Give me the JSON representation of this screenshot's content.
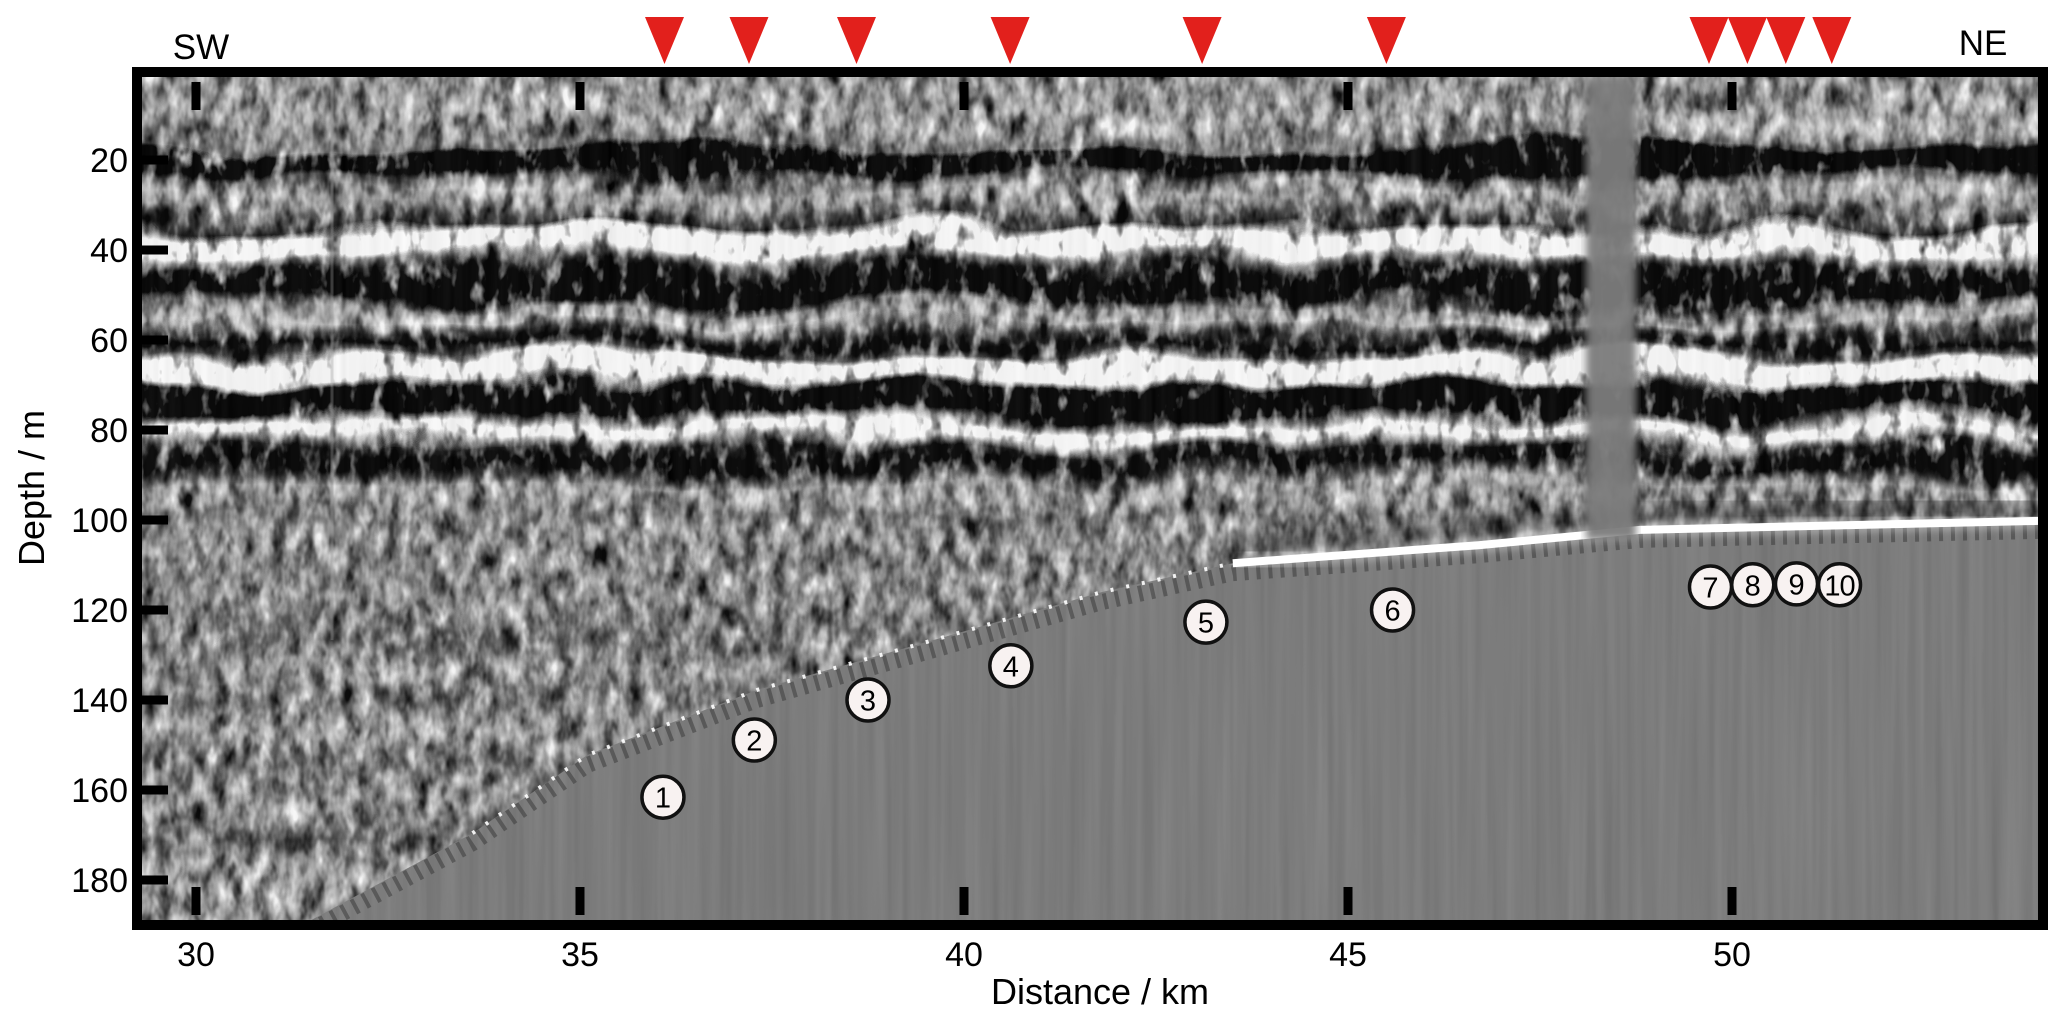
{
  "figure": {
    "left_label": "SW",
    "right_label": "NE",
    "xlabel": "Distance / km",
    "ylabel": "Depth / m"
  },
  "chart_data": {
    "type": "heatmap",
    "title": "",
    "subtitle": "grayscale reflection depth section (radargram/seismic profile)",
    "xlabel": "Distance / km",
    "ylabel": "Depth / m",
    "orientation": {
      "left": "SW",
      "right": "NE"
    },
    "x_ticks": [
      30,
      35,
      40,
      45,
      50
    ],
    "y_ticks": [
      20,
      40,
      60,
      80,
      100,
      120,
      140,
      160,
      180
    ],
    "x_range_km": [
      29.2,
      54.0
    ],
    "y_range_m": [
      0,
      189
    ],
    "grid": false,
    "legend": false,
    "survey_markers_km": [
      36.1,
      37.2,
      38.6,
      40.6,
      43.1,
      45.5,
      49.7,
      50.2,
      50.7,
      51.3
    ],
    "numbered_sites": [
      {
        "label": "1",
        "km": 36.08,
        "depth_m": 161.6
      },
      {
        "label": "2",
        "km": 37.27,
        "depth_m": 148.9
      },
      {
        "label": "3",
        "km": 38.75,
        "depth_m": 140.0
      },
      {
        "label": "4",
        "km": 40.61,
        "depth_m": 132.4
      },
      {
        "label": "5",
        "km": 43.15,
        "depth_m": 122.7
      },
      {
        "label": "6",
        "km": 45.58,
        "depth_m": 120.0
      },
      {
        "label": "7",
        "km": 49.72,
        "depth_m": 114.9
      },
      {
        "label": "8",
        "km": 50.27,
        "depth_m": 114.4
      },
      {
        "label": "9",
        "km": 50.84,
        "depth_m": 114.2
      },
      {
        "label": "10",
        "km": 51.4,
        "depth_m": 114.4
      }
    ],
    "bed_reflector_profile_km_depth": [
      [
        31.5,
        188.9
      ],
      [
        33.6,
        169.6
      ],
      [
        35.1,
        152.2
      ],
      [
        37.3,
        137.8
      ],
      [
        39.6,
        126.7
      ],
      [
        41.8,
        116.0
      ],
      [
        43.5,
        109.6
      ],
      [
        46.7,
        105.6
      ],
      [
        48.8,
        102.2
      ],
      [
        54.0,
        100.2
      ]
    ],
    "data_gap_km": [
      48.1,
      48.75
    ],
    "colors": {
      "marker_red": "#e2201c",
      "no_data_gray": "#7c7c7c",
      "site_circle_fill": "#f8f2f1",
      "site_circle_stroke": "#111111",
      "frame_black": "#000000",
      "bright_reflector_white": "#ffffff"
    }
  }
}
